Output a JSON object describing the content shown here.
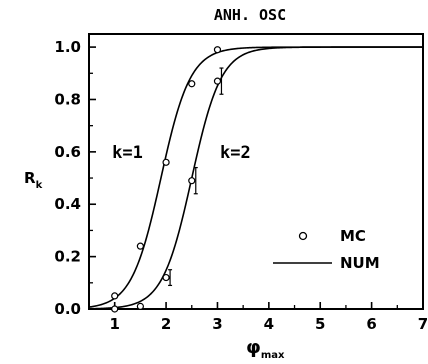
{
  "chart_data": {
    "type": "line",
    "title": "ANH. OSC",
    "xlabel": "φ",
    "xlabel_sub": "max",
    "ylabel": "R",
    "ylabel_sub": "k",
    "xlim": [
      0.5,
      7.0
    ],
    "ylim": [
      0.0,
      1.05
    ],
    "xticks": [
      1,
      2,
      3,
      4,
      5,
      6,
      7
    ],
    "xtick_labels": [
      "1",
      "2",
      "3",
      "4",
      "5",
      "6",
      "7"
    ],
    "yticks": [
      0.0,
      0.2,
      0.4,
      0.6,
      0.8,
      1.0
    ],
    "ytick_labels": [
      "0.0",
      "0.2",
      "0.4",
      "0.6",
      "0.8",
      "1.0"
    ],
    "grid": false,
    "legend_position": "bottom-right",
    "legend": [
      {
        "label": "MC",
        "kind": "marker"
      },
      {
        "label": "NUM",
        "kind": "line"
      }
    ],
    "annotations": [
      {
        "text": "k=1",
        "x": 0.95,
        "y": 0.6
      },
      {
        "text": "k=2",
        "x": 3.05,
        "y": 0.6
      }
    ],
    "series": [
      {
        "curve": "k=1",
        "num_center": 1.9,
        "num_steepness": 3.5,
        "mc_points": [
          {
            "x": 1.0,
            "y": 0.05,
            "err": 0.0
          },
          {
            "x": 1.5,
            "y": 0.24,
            "err": 0.0
          },
          {
            "x": 2.0,
            "y": 0.56,
            "err": 0.0
          },
          {
            "x": 2.5,
            "y": 0.86,
            "err": 0.0
          },
          {
            "x": 3.0,
            "y": 0.99,
            "err": 0.0
          }
        ]
      },
      {
        "curve": "k=2",
        "num_center": 2.5,
        "num_steepness": 3.5,
        "mc_points": [
          {
            "x": 1.0,
            "y": 0.0,
            "err": 0.0
          },
          {
            "x": 1.5,
            "y": 0.01,
            "err": 0.0
          },
          {
            "x": 2.0,
            "y": 0.12,
            "err": 0.03
          },
          {
            "x": 2.5,
            "y": 0.49,
            "err": 0.05
          },
          {
            "x": 3.0,
            "y": 0.87,
            "err": 0.05
          }
        ]
      }
    ]
  }
}
